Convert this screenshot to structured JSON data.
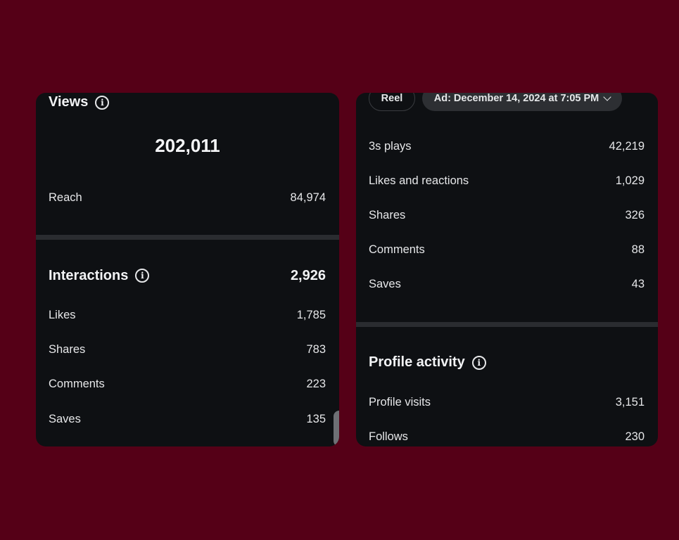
{
  "views": {
    "title": "Views",
    "value": "202,011",
    "reach_label": "Reach",
    "reach_value": "84,974"
  },
  "interactions": {
    "title": "Interactions",
    "total": "2,926",
    "items": [
      {
        "label": "Likes",
        "value": "1,785"
      },
      {
        "label": "Shares",
        "value": "783"
      },
      {
        "label": "Comments",
        "value": "223"
      },
      {
        "label": "Saves",
        "value": "135"
      }
    ]
  },
  "filters": {
    "type": "Reel",
    "ad": "Ad: December 14, 2024 at 7:05 PM"
  },
  "ad_metrics": [
    {
      "label": "3s plays",
      "value": "42,219"
    },
    {
      "label": "Likes and reactions",
      "value": "1,029"
    },
    {
      "label": "Shares",
      "value": "326"
    },
    {
      "label": "Comments",
      "value": "88"
    },
    {
      "label": "Saves",
      "value": "43"
    }
  ],
  "profile": {
    "title": "Profile activity",
    "items": [
      {
        "label": "Profile visits",
        "value": "3,151"
      },
      {
        "label": "Follows",
        "value": "230"
      }
    ]
  }
}
